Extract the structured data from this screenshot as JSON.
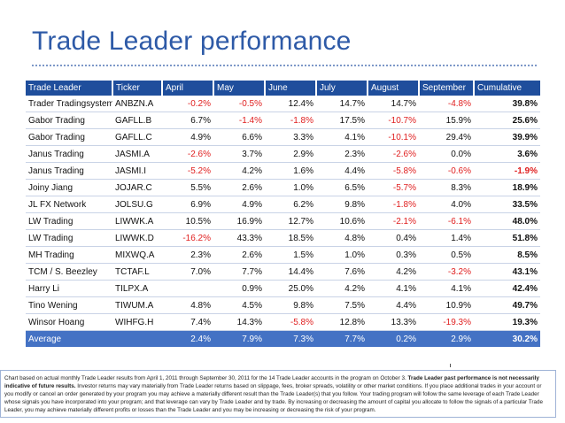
{
  "title": "Trade Leader performance",
  "table": {
    "headers": [
      "Trade Leader",
      "Ticker",
      "April",
      "May",
      "June",
      "July",
      "August",
      "September",
      "Cumulative"
    ],
    "rows": [
      [
        "Trader Tradingsystema",
        "ANBZN.A",
        "-0.2%",
        "-0.5%",
        "12.4%",
        "14.7%",
        "14.7%",
        "-4.8%",
        "39.8%"
      ],
      [
        "Gabor Trading",
        "GAFLL.B",
        "6.7%",
        "-1.4%",
        "-1.8%",
        "17.5%",
        "-10.7%",
        "15.9%",
        "25.6%"
      ],
      [
        "Gabor Trading",
        "GAFLL.C",
        "4.9%",
        "6.6%",
        "3.3%",
        "4.1%",
        "-10.1%",
        "29.4%",
        "39.9%"
      ],
      [
        "Janus Trading",
        "JASMI.A",
        "-2.6%",
        "3.7%",
        "2.9%",
        "2.3%",
        "-2.6%",
        "0.0%",
        "3.6%"
      ],
      [
        "Janus Trading",
        "JASMI.I",
        "-5.2%",
        "4.2%",
        "1.6%",
        "4.4%",
        "-5.8%",
        "-0.6%",
        "-1.9%"
      ],
      [
        "Joiny Jiang",
        "JOJAR.C",
        "5.5%",
        "2.6%",
        "1.0%",
        "6.5%",
        "-5.7%",
        "8.3%",
        "18.9%"
      ],
      [
        "JL FX Network",
        "JOLSU.G",
        "6.9%",
        "4.9%",
        "6.2%",
        "9.8%",
        "-1.8%",
        "4.0%",
        "33.5%"
      ],
      [
        "LW Trading",
        "LIWWK.A",
        "10.5%",
        "16.9%",
        "12.7%",
        "10.6%",
        "-2.1%",
        "-6.1%",
        "48.0%"
      ],
      [
        "LW Trading",
        "LIWWK.D",
        "-16.2%",
        "43.3%",
        "18.5%",
        "4.8%",
        "0.4%",
        "1.4%",
        "51.8%"
      ],
      [
        "MH Trading",
        "MIXWQ.A",
        "2.3%",
        "2.6%",
        "1.5%",
        "1.0%",
        "0.3%",
        "0.5%",
        "8.5%"
      ],
      [
        "TCM / S. Beezley",
        "TCTAF.L",
        "7.0%",
        "7.7%",
        "14.4%",
        "7.6%",
        "4.2%",
        "-3.2%",
        "43.1%"
      ],
      [
        "Harry Li",
        "TILPX.A",
        "",
        "0.9%",
        "25.0%",
        "4.2%",
        "4.1%",
        "4.1%",
        "42.4%"
      ],
      [
        "Tino Wening",
        "TIWUM.A",
        "4.8%",
        "4.5%",
        "9.8%",
        "7.5%",
        "4.4%",
        "10.9%",
        "49.7%"
      ],
      [
        "Winsor Hoang",
        "WIHFG.H",
        "7.4%",
        "14.3%",
        "-5.8%",
        "12.8%",
        "13.3%",
        "-19.3%",
        "19.3%"
      ]
    ],
    "average": [
      "Average",
      "",
      "2.4%",
      "7.9%",
      "7.3%",
      "7.7%",
      "0.2%",
      "2.9%",
      "30.2%"
    ]
  },
  "footnote": {
    "part1": "Chart based on actual monthly Trade Leader results from April 1, 2011 through September 30, 2011 for the 14 Trade Leader accounts in the program on October 3. ",
    "bold1": "Trade Leader past performance is not necessarily indicative of future results.",
    "part2": " Investor returns may vary materially from Trade Leader returns based on slippage, fees, broker spreads, volatility or other market conditions. If you place additional trades in your account or you modify or cancel an order generated by your program you may achieve a materially different result than the Trade Leader(s) that you follow. Your trading program will follow the same leverage of each Trade Leader whose signals you have incorporated into your program; and that leverage can vary by Trade Leader and by trade. By increasing or decreasing the amount of capital you allocate to follow the signals of a particular Trade Leader, you may achieve materially different profits or losses than the Trade Leader and you may be increasing or decreasing the risk of your program."
  },
  "colors": {
    "title": "#2e5aa7",
    "header_bg": "#1f4e9c",
    "average_bg": "#4472c4",
    "negative": "#e02020"
  }
}
